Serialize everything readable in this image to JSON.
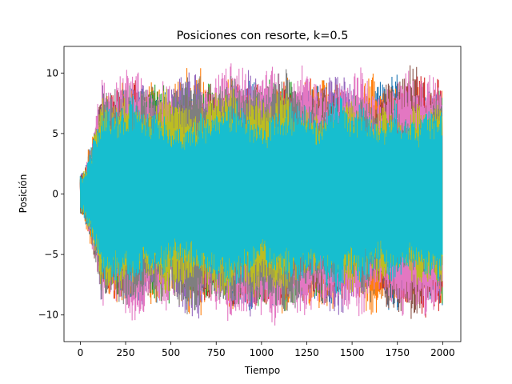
{
  "chart_data": {
    "type": "line",
    "title": "Posiciones con resorte, k=0.5",
    "xlabel": "Tiempo",
    "ylabel": "Posición",
    "xlim": [
      -90,
      2100
    ],
    "ylim": [
      -12.2,
      12.2
    ],
    "xticks": [
      0,
      250,
      500,
      750,
      1000,
      1250,
      1500,
      1750,
      2000
    ],
    "yticks": [
      -10,
      -5,
      0,
      5,
      10
    ],
    "grid": false,
    "legend": "none",
    "n_points": 2000,
    "series": [
      {
        "color": "#1f77b4",
        "amplitude": 7.2
      },
      {
        "color": "#ff7f0e",
        "amplitude": 7.6
      },
      {
        "color": "#2ca02c",
        "amplitude": 7.4
      },
      {
        "color": "#d62728",
        "amplitude": 7.8
      },
      {
        "color": "#9467bd",
        "amplitude": 7.3
      },
      {
        "color": "#8c564b",
        "amplitude": 7.5
      },
      {
        "color": "#e377c2",
        "amplitude": 7.9
      },
      {
        "color": "#7f7f7f",
        "amplitude": 7.4
      },
      {
        "color": "#bcbd22",
        "amplitude": 6.6
      },
      {
        "color": "#17becf",
        "amplitude": 5.8
      }
    ]
  }
}
